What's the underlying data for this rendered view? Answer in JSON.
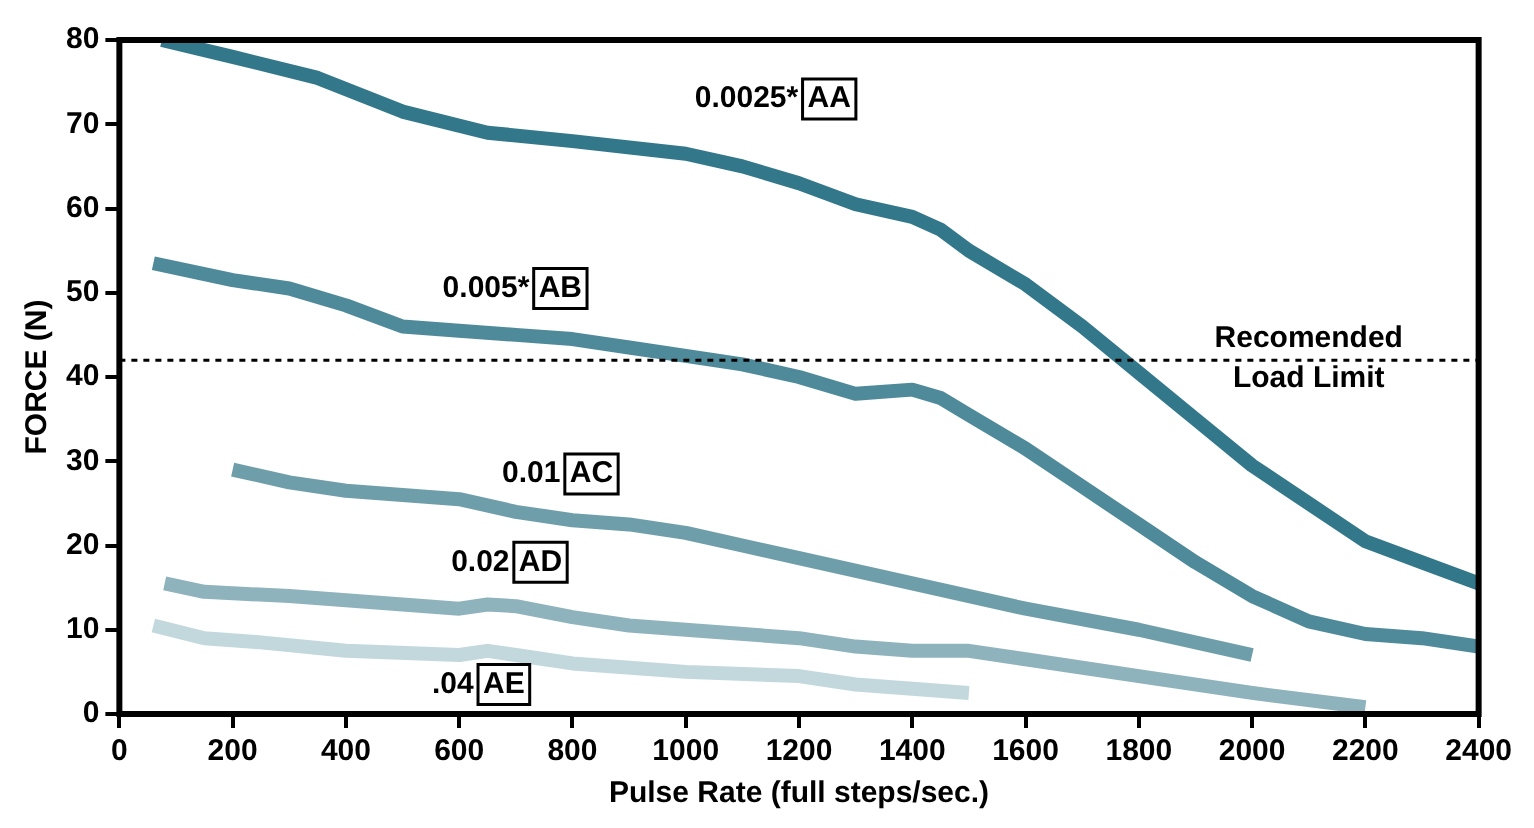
{
  "chart_data": {
    "type": "line",
    "xlabel": "Pulse Rate (full steps/sec.)",
    "ylabel": "FORCE (N)",
    "xlim": [
      0,
      2400
    ],
    "xticks": [
      0,
      200,
      400,
      600,
      800,
      1000,
      1200,
      1400,
      1600,
      1800,
      2000,
      2200,
      2400
    ],
    "ylim": [
      0,
      80
    ],
    "yticks": [
      0,
      10,
      20,
      30,
      40,
      50,
      60,
      70,
      80
    ],
    "grid": false,
    "legend": false,
    "marker": "none",
    "line_style": "solid",
    "series": [
      {
        "name": "0.0025* AA",
        "color": "#33788a",
        "x": [
          75,
          200,
          350,
          500,
          650,
          800,
          1000,
          1100,
          1200,
          1300,
          1400,
          1450,
          1500,
          1600,
          1700,
          1800,
          1900,
          2000,
          2100,
          2200,
          2300,
          2400
        ],
        "values": [
          80,
          78,
          75.5,
          71.5,
          69,
          68,
          66.5,
          65,
          63,
          60.5,
          59,
          57.5,
          55,
          51,
          46,
          40.5,
          35,
          29.5,
          25,
          20.5,
          18,
          15.5
        ]
      },
      {
        "name": "0.005* AB",
        "color": "#4e8a9a",
        "x": [
          60,
          200,
          300,
          400,
          500,
          600,
          700,
          800,
          900,
          1000,
          1100,
          1200,
          1300,
          1400,
          1450,
          1500,
          1600,
          1700,
          1800,
          1900,
          2000,
          2100,
          2200,
          2300,
          2400
        ],
        "values": [
          53.5,
          51.5,
          50.5,
          48.5,
          46,
          45.5,
          45,
          44.5,
          43.5,
          42.5,
          41.5,
          40,
          38,
          38.5,
          37.5,
          35.5,
          31.5,
          27,
          22.5,
          18,
          14,
          11,
          9.5,
          9,
          8
        ]
      },
      {
        "name": "0.01 AC",
        "color": "#6e9ea9",
        "x": [
          200,
          300,
          400,
          600,
          700,
          800,
          900,
          1000,
          1100,
          1200,
          1400,
          1600,
          1800,
          2000
        ],
        "values": [
          29,
          27.5,
          26.5,
          25.5,
          24,
          23,
          22.5,
          21.5,
          20,
          18.5,
          15.5,
          12.5,
          10,
          7
        ]
      },
      {
        "name": "0.02 AD",
        "color": "#8fb3bc",
        "x": [
          80,
          150,
          300,
          500,
          600,
          650,
          700,
          800,
          900,
          1000,
          1200,
          1300,
          1400,
          1500,
          1600,
          1800,
          2000,
          2200
        ],
        "values": [
          15.5,
          14.5,
          14,
          13,
          12.5,
          13,
          12.8,
          11.5,
          10.5,
          10,
          9,
          8,
          7.5,
          7.5,
          6.5,
          4.5,
          2.5,
          0.8
        ]
      },
      {
        "name": ".04 AE",
        "color": "#c2d8dd",
        "x": [
          60,
          150,
          250,
          400,
          600,
          650,
          700,
          800,
          1000,
          1200,
          1300,
          1500
        ],
        "values": [
          10.5,
          9,
          8.5,
          7.5,
          7,
          7.5,
          7,
          6,
          5,
          4.5,
          3.5,
          2.5
        ]
      }
    ],
    "ref_lines": [
      {
        "axis": "y",
        "value": 42,
        "label": "Recomended\nLoad Limit",
        "color": "#000000",
        "line_style": "dotted"
      }
    ]
  }
}
